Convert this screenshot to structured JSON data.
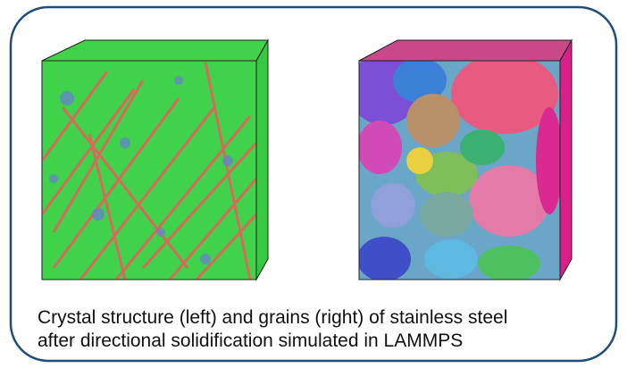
{
  "figure": {
    "caption": [
      "Crystal structure (left) and grains (right) of stainless steel",
      "after directional solidification simulated in LAMMPS"
    ]
  }
}
